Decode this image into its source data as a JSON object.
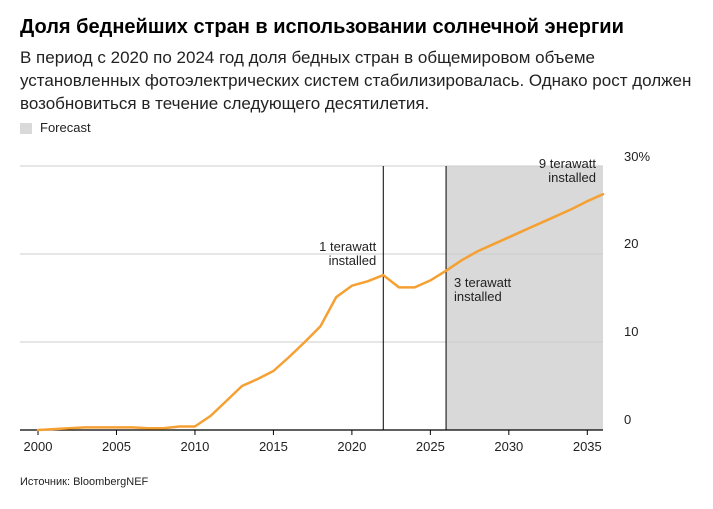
{
  "title": "Доля беднейших стран в использовании солнечной энергии",
  "subtitle": "В период с 2020 по 2024 год доля бедных стран в общемировом объеме установленных фотоэлектрических систем стабилизировалась. Однако рост должен возобновиться в течение следующего десятилетия.",
  "legend": {
    "label": "Forecast",
    "color": "#d9d9d9"
  },
  "source": "Источник: BloombergNEF",
  "chart_data": {
    "type": "line",
    "x_range": [
      2000,
      2036
    ],
    "ylim": [
      0,
      30
    ],
    "y_ticks": [
      0,
      10,
      20,
      30
    ],
    "y_tick_labels": [
      "0",
      "10",
      "20",
      "30%"
    ],
    "y_axis_position": "right",
    "x_ticks": [
      2000,
      2005,
      2010,
      2015,
      2020,
      2025,
      2030,
      2035
    ],
    "x_tick_labels": [
      "2000",
      "2005",
      "2010",
      "2015",
      "2020",
      "2025",
      "2030",
      "2035"
    ],
    "grid": "horizontal",
    "forecast_range": [
      2026,
      2036
    ],
    "series": [
      {
        "color": "#f5a033",
        "x": [
          2000,
          2001,
          2002,
          2003,
          2004,
          2005,
          2006,
          2007,
          2008,
          2009,
          2010,
          2011,
          2012,
          2013,
          2014,
          2015,
          2016,
          2017,
          2018,
          2019,
          2020,
          2021,
          2022,
          2023,
          2024,
          2025,
          2026,
          2027,
          2028,
          2029,
          2030,
          2031,
          2032,
          2033,
          2034,
          2035,
          2036
        ],
        "y": [
          0.0,
          0.1,
          0.2,
          0.3,
          0.3,
          0.3,
          0.3,
          0.2,
          0.2,
          0.4,
          0.4,
          1.6,
          3.3,
          5.0,
          5.8,
          6.7,
          8.3,
          10.0,
          11.8,
          15.1,
          16.4,
          16.9,
          17.6,
          16.2,
          16.2,
          17.0,
          18.1,
          19.3,
          20.3,
          21.1,
          21.9,
          22.7,
          23.5,
          24.3,
          25.1,
          26.0,
          26.8
        ]
      }
    ],
    "annotations": [
      {
        "x": 2022,
        "line": true,
        "lines": [
          "1 terawatt",
          "installed"
        ]
      },
      {
        "x": 2026,
        "line": true,
        "lines": [
          "3 terawatt",
          "installed"
        ]
      },
      {
        "x": 2036,
        "line": false,
        "lines": [
          "9 terawatt",
          "installed"
        ]
      }
    ]
  }
}
